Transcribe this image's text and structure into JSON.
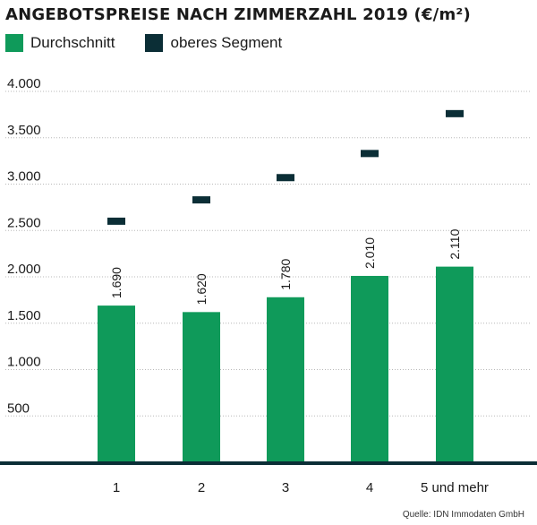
{
  "title": "ANGEBOTSPREISE NACH ZIMMERZAHL 2019 (€/m²)",
  "legend": {
    "items": [
      {
        "label": "Durchschnitt",
        "color": "#0f9a5a"
      },
      {
        "label": "oberes Segment",
        "color": "#0b2e36"
      }
    ]
  },
  "source": "Quelle: IDN Immodaten GmbH",
  "chart_data": {
    "type": "bar",
    "categories": [
      "1",
      "2",
      "3",
      "4",
      "5 und mehr"
    ],
    "series": [
      {
        "name": "Durchschnitt",
        "values": [
          1690,
          1620,
          1780,
          2010,
          2110
        ]
      },
      {
        "name": "oberes Segment",
        "values": [
          2600,
          2830,
          3070,
          3330,
          3760
        ]
      }
    ],
    "data_labels": [
      "1.690",
      "1.620",
      "1.780",
      "2.010",
      "2.110"
    ],
    "ylim": [
      0,
      4000
    ],
    "yticks": [
      500,
      1000,
      1500,
      2000,
      2500,
      3000,
      3500,
      4000
    ],
    "ytick_labels": [
      "500",
      "1.000",
      "1.500",
      "2.000",
      "2.500",
      "3.000",
      "3.500",
      "4.000"
    ],
    "grid": true
  }
}
